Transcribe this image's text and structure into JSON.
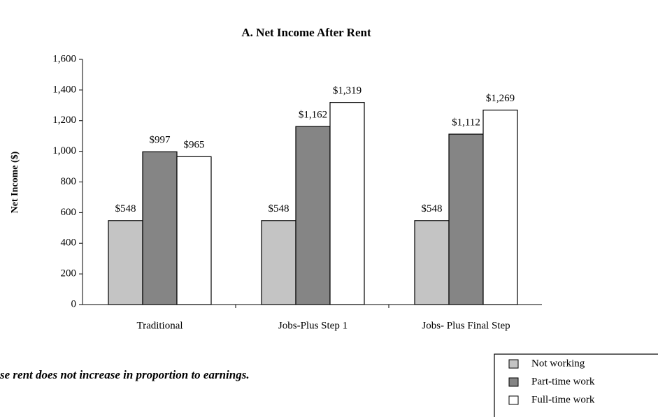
{
  "chart_data": {
    "type": "bar",
    "title": "A. Net Income After Rent",
    "y_label": "Net Income ($)",
    "categories": [
      "Traditional",
      "Jobs-Plus Step 1",
      "Jobs- Plus Final Step"
    ],
    "series": [
      {
        "name": "Not working",
        "color": "#c4c4c4",
        "values": [
          548,
          548,
          548
        ],
        "value_labels": [
          "$548",
          "$548",
          "$548"
        ]
      },
      {
        "name": "Part-time work",
        "color": "#858585",
        "values": [
          997,
          1162,
          1112
        ],
        "value_labels": [
          "$997",
          "$1,162",
          "$1,112"
        ]
      },
      {
        "name": "Full-time work",
        "color": "#ffffff",
        "values": [
          965,
          1319,
          1269
        ],
        "value_labels": [
          "$965",
          "$1,319",
          "$1,269"
        ]
      }
    ],
    "ylim": [
      0,
      1600
    ],
    "yticks": [
      0,
      200,
      400,
      600,
      800,
      1000,
      1200,
      1400,
      1600
    ],
    "ytick_labels": [
      "0",
      "200",
      "400",
      "600",
      "800",
      "1,000",
      "1,200",
      "1,400",
      "1,600"
    ],
    "annotations": [
      "se rent does not increase in proportion to earnings."
    ],
    "legend": "bottom-right"
  }
}
